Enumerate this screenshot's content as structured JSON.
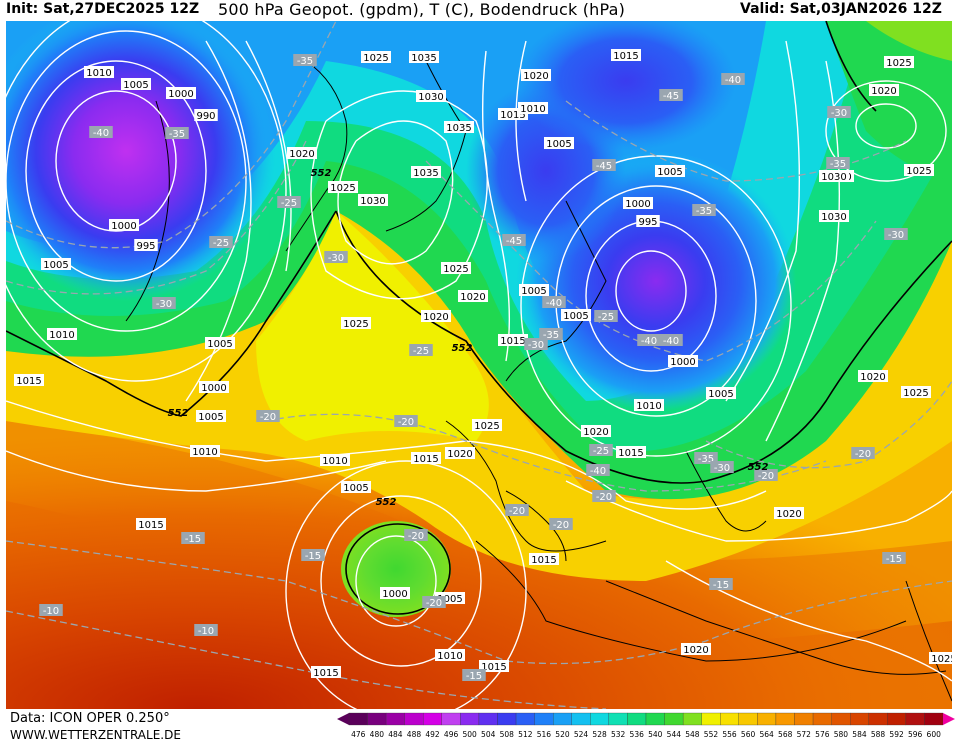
{
  "header": {
    "init": "Init: Sat,27DEC2025 12Z",
    "title": "500 hPa Geopot. (gpdm), T (C), Bodendruck (hPa)",
    "valid": "Valid: Sat,03JAN2026 12Z"
  },
  "footer": {
    "data_source": "Data: ICON OPER 0.250°",
    "website": "WWW.WETTERZENTRALE.DE"
  },
  "colorbar": {
    "labels": [
      "476",
      "480",
      "484",
      "488",
      "492",
      "496",
      "500",
      "504",
      "508",
      "512",
      "516",
      "520",
      "524",
      "528",
      "532",
      "536",
      "540",
      "544",
      "548",
      "552",
      "556",
      "560",
      "564",
      "568",
      "572",
      "576",
      "580",
      "584",
      "588",
      "592",
      "596",
      "600"
    ],
    "colors": [
      "#5a005a",
      "#78007d",
      "#9a00a5",
      "#bb00cc",
      "#d400e6",
      "#c040f0",
      "#8a2bf0",
      "#6030f0",
      "#3a3cf0",
      "#2a5ff5",
      "#1f80f8",
      "#1aa0f5",
      "#14c0f0",
      "#10d8e0",
      "#10e0b4",
      "#10dc80",
      "#20d850",
      "#40d830",
      "#80e020",
      "#f0f000",
      "#f8e000",
      "#f8c800",
      "#f8b000",
      "#f89800",
      "#f08000",
      "#e86a00",
      "#e05500",
      "#d84500",
      "#cc3000",
      "#c02000",
      "#b01010",
      "#a00010"
    ],
    "arrow_left_color": "#5a005a",
    "arrow_right_color": "#f000a0"
  },
  "map": {
    "pressure_labels": [
      {
        "text": "1010"
      },
      {
        "text": "1005"
      },
      {
        "text": "1000"
      },
      {
        "text": "990"
      },
      {
        "text": "1025"
      },
      {
        "text": "1035"
      },
      {
        "text": "1030"
      },
      {
        "text": "1035"
      },
      {
        "text": "1020"
      },
      {
        "text": "1015"
      },
      {
        "text": "1010"
      },
      {
        "text": "1005"
      },
      {
        "text": "1015"
      },
      {
        "text": "1025"
      },
      {
        "text": "1020"
      },
      {
        "text": "1025"
      },
      {
        "text": "1005"
      },
      {
        "text": "1000"
      },
      {
        "text": "995"
      },
      {
        "text": "1030"
      },
      {
        "text": "1030"
      },
      {
        "text": "1005"
      },
      {
        "text": "1000"
      },
      {
        "text": "995"
      },
      {
        "text": "1020"
      },
      {
        "text": "1025"
      },
      {
        "text": "1035"
      },
      {
        "text": "1030"
      },
      {
        "text": "1025"
      },
      {
        "text": "1020"
      },
      {
        "text": "1025"
      },
      {
        "text": "1020"
      },
      {
        "text": "1005"
      },
      {
        "text": "1005"
      },
      {
        "text": "1015"
      },
      {
        "text": "1010"
      },
      {
        "text": "1015"
      },
      {
        "text": "1005"
      },
      {
        "text": "1000"
      },
      {
        "text": "1010"
      },
      {
        "text": "1005"
      },
      {
        "text": "1000"
      },
      {
        "text": "1005"
      },
      {
        "text": "1010"
      },
      {
        "text": "1020"
      },
      {
        "text": "1015"
      },
      {
        "text": "1025"
      },
      {
        "text": "1020"
      },
      {
        "text": "1025"
      },
      {
        "text": "1015"
      },
      {
        "text": "1010"
      },
      {
        "text": "1020"
      },
      {
        "text": "1015"
      },
      {
        "text": "1015"
      },
      {
        "text": "1010"
      },
      {
        "text": "1005"
      },
      {
        "text": "1000"
      },
      {
        "text": "1005"
      },
      {
        "text": "1010"
      },
      {
        "text": "1015"
      },
      {
        "text": "1015"
      },
      {
        "text": "1020"
      },
      {
        "text": "1020"
      },
      {
        "text": "1025"
      },
      {
        "text": "1030"
      },
      {
        "text": "1035"
      },
      {
        "text": "1030"
      }
    ],
    "temperature_labels": [
      {
        "text": "-40"
      },
      {
        "text": "-35"
      },
      {
        "text": "-25"
      },
      {
        "text": "-30"
      },
      {
        "text": "-25"
      },
      {
        "text": "-30"
      },
      {
        "text": "-35"
      },
      {
        "text": "-45"
      },
      {
        "text": "-45"
      },
      {
        "text": "-45"
      },
      {
        "text": "-40"
      },
      {
        "text": "-35"
      },
      {
        "text": "-40"
      },
      {
        "text": "-30"
      },
      {
        "text": "-35"
      },
      {
        "text": "-30"
      },
      {
        "text": "-40"
      },
      {
        "text": "-25"
      },
      {
        "text": "-20"
      },
      {
        "text": "-20"
      },
      {
        "text": "-20"
      },
      {
        "text": "-25"
      },
      {
        "text": "-20"
      },
      {
        "text": "-20"
      },
      {
        "text": "-20"
      },
      {
        "text": "-20"
      },
      {
        "text": "-15"
      },
      {
        "text": "-15"
      },
      {
        "text": "-15"
      },
      {
        "text": "-10"
      },
      {
        "text": "-10"
      },
      {
        "text": "-15"
      },
      {
        "text": "-15"
      },
      {
        "text": "-35"
      },
      {
        "text": "-30"
      },
      {
        "text": "-20"
      },
      {
        "text": "-20"
      },
      {
        "text": "-40"
      },
      {
        "text": "-30"
      },
      {
        "text": "-35"
      },
      {
        "text": "-25"
      },
      {
        "text": "-40"
      }
    ],
    "geopotential_labels": [
      {
        "text": "552"
      },
      {
        "text": "552"
      },
      {
        "text": "552"
      },
      {
        "text": "552"
      },
      {
        "text": "552"
      }
    ]
  }
}
